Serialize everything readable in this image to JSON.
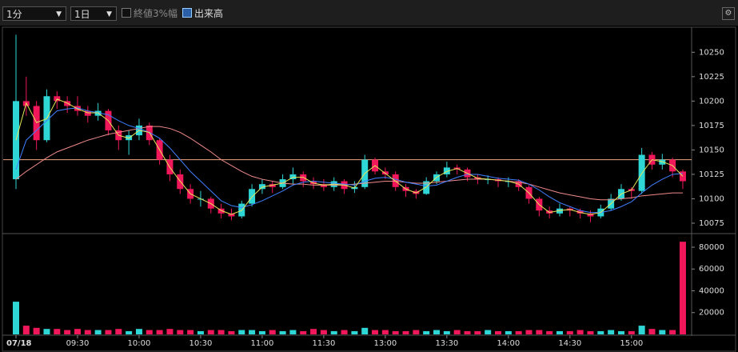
{
  "toolbar": {
    "interval": "1分",
    "period": "1日",
    "option_price_range": "終値3%幅",
    "option_volume": "出来高"
  },
  "chart_data": [
    {
      "type": "candlestick",
      "categories": [
        "07/18",
        null,
        null,
        null,
        null,
        null,
        "09:30",
        null,
        null,
        null,
        null,
        null,
        "10:00",
        null,
        null,
        null,
        null,
        null,
        "10:30",
        null,
        null,
        null,
        null,
        null,
        "11:00",
        null,
        null,
        null,
        null,
        null,
        "11:30",
        null,
        null,
        null,
        null,
        null,
        "13:00",
        null,
        null,
        null,
        null,
        null,
        "13:30",
        null,
        null,
        null,
        null,
        null,
        "14:00",
        null,
        null,
        null,
        null,
        null,
        "14:30",
        null,
        null,
        null,
        null,
        null,
        "15:00",
        null,
        null,
        null,
        null,
        null
      ],
      "open": [
        10120,
        10200,
        10195,
        10160,
        10205,
        10200,
        10195,
        10190,
        10185,
        10190,
        10170,
        10160,
        10165,
        10175,
        10160,
        10140,
        10125,
        10110,
        10100,
        10100,
        10090,
        10085,
        10082,
        10095,
        10110,
        10115,
        10112,
        10120,
        10125,
        10118,
        10115,
        10112,
        10118,
        10110,
        10112,
        10140,
        10128,
        10125,
        10112,
        10108,
        10105,
        10118,
        10125,
        10132,
        10130,
        10122,
        10120,
        10120,
        10118,
        10118,
        10112,
        10100,
        10088,
        10085,
        10090,
        10088,
        10085,
        10082,
        10090,
        10100,
        10110,
        10108,
        10145,
        10135,
        10140,
        10128
      ],
      "high": [
        10268,
        10225,
        10200,
        10212,
        10210,
        10205,
        10205,
        10195,
        10198,
        10192,
        10175,
        10170,
        10182,
        10178,
        10162,
        10145,
        10130,
        10115,
        10108,
        10102,
        10095,
        10090,
        10098,
        10115,
        10120,
        10118,
        10125,
        10132,
        10128,
        10122,
        10120,
        10122,
        10120,
        10118,
        10145,
        10142,
        10132,
        10128,
        10115,
        10110,
        10122,
        10128,
        10138,
        10135,
        10132,
        10125,
        10124,
        10122,
        10122,
        10120,
        10114,
        10102,
        10092,
        10095,
        10092,
        10090,
        10088,
        10094,
        10105,
        10115,
        10112,
        10152,
        10148,
        10146,
        10142,
        10130
      ],
      "low": [
        10110,
        10185,
        10150,
        10158,
        10192,
        10188,
        10185,
        10178,
        10180,
        10165,
        10150,
        10145,
        10160,
        10155,
        10135,
        10118,
        10105,
        10095,
        10092,
        10085,
        10080,
        10078,
        10080,
        10092,
        10105,
        10106,
        10110,
        10115,
        10112,
        10110,
        10108,
        10108,
        10105,
        10106,
        10110,
        10125,
        10120,
        10108,
        10102,
        10100,
        10104,
        10115,
        10122,
        10125,
        10118,
        10115,
        10115,
        10112,
        10112,
        10108,
        10095,
        10082,
        10080,
        10082,
        10082,
        10080,
        10076,
        10080,
        10088,
        10098,
        10100,
        10105,
        10130,
        10130,
        10122,
        10110
      ],
      "close": [
        10200,
        10195,
        10160,
        10205,
        10200,
        10195,
        10190,
        10185,
        10190,
        10170,
        10160,
        10165,
        10175,
        10160,
        10140,
        10125,
        10110,
        10100,
        10100,
        10090,
        10085,
        10082,
        10095,
        10110,
        10115,
        10112,
        10120,
        10125,
        10118,
        10115,
        10112,
        10118,
        10110,
        10112,
        10140,
        10128,
        10125,
        10112,
        10108,
        10105,
        10118,
        10125,
        10132,
        10130,
        10122,
        10120,
        10120,
        10118,
        10118,
        10112,
        10100,
        10088,
        10085,
        10090,
        10088,
        10085,
        10082,
        10090,
        10100,
        10110,
        10108,
        10145,
        10135,
        10140,
        10128,
        10118
      ],
      "up_color": "#2fd6d6",
      "down_color": "#f0185a",
      "series": [
        {
          "color": "#f08a8a",
          "values": [
            10120,
            10128,
            10135,
            10142,
            10148,
            10152,
            10156,
            10160,
            10163,
            10166,
            10168,
            10170,
            10172,
            10174,
            10174,
            10172,
            10168,
            10162,
            10155,
            10148,
            10140,
            10134,
            10128,
            10123,
            10120,
            10118,
            10116,
            10115,
            10115,
            10114,
            10114,
            10114,
            10114,
            10115,
            10116,
            10117,
            10118,
            10118,
            10117,
            10116,
            10116,
            10117,
            10118,
            10119,
            10120,
            10120,
            10120,
            10119,
            10118,
            10117,
            10115,
            10112,
            10109,
            10106,
            10104,
            10102,
            10100,
            10099,
            10099,
            10100,
            10101,
            10103,
            10104,
            10105,
            10106,
            10106
          ]
        },
        {
          "color": "#3f7fff",
          "values": [
            10130,
            10160,
            10170,
            10180,
            10190,
            10192,
            10193,
            10190,
            10188,
            10186,
            10180,
            10175,
            10172,
            10168,
            10162,
            10152,
            10140,
            10128,
            10118,
            10108,
            10098,
            10093,
            10091,
            10094,
            10098,
            10103,
            10108,
            10114,
            10117,
            10118,
            10117,
            10116,
            10115,
            10114,
            10118,
            10121,
            10122,
            10120,
            10117,
            10115,
            10113,
            10114,
            10118,
            10122,
            10125,
            10125,
            10123,
            10121,
            10120,
            10119,
            10115,
            10109,
            10102,
            10096,
            10092,
            10088,
            10086,
            10086,
            10088,
            10092,
            10097,
            10106,
            10114,
            10120,
            10125,
            10126
          ]
        },
        {
          "color": "#e6e65a",
          "values": [
            10160,
            10198,
            10178,
            10182,
            10202,
            10198,
            10192,
            10188,
            10188,
            10180,
            10165,
            10162,
            10170,
            10168,
            10150,
            10132,
            10118,
            10105,
            10100,
            10095,
            10088,
            10084,
            10088,
            10102,
            10112,
            10114,
            10116,
            10122,
            10122,
            10116,
            10114,
            10115,
            10114,
            10111,
            10126,
            10134,
            10126,
            10118,
            10110,
            10106,
            10112,
            10122,
            10128,
            10131,
            10126,
            10121,
            10120,
            10119,
            10118,
            10115,
            10106,
            10094,
            10086,
            10088,
            10089,
            10086,
            10084,
            10086,
            10095,
            10105,
            10109,
            10126,
            10140,
            10138,
            10134,
            10123
          ]
        }
      ],
      "reference_line": {
        "value": 10140,
        "color": "#f4a582"
      },
      "ylim": [
        10066,
        10274
      ],
      "yticks": [
        10075,
        10100,
        10125,
        10150,
        10175,
        10200,
        10225,
        10250
      ]
    },
    {
      "type": "bar",
      "values": [
        30000,
        8000,
        6000,
        5000,
        5000,
        4000,
        5000,
        4000,
        4000,
        4000,
        5000,
        3000,
        5000,
        4000,
        4000,
        5000,
        4000,
        4000,
        3000,
        4000,
        4000,
        3000,
        4000,
        4000,
        3000,
        4000,
        3000,
        4000,
        3000,
        5000,
        4000,
        3000,
        4000,
        3000,
        6000,
        4000,
        4000,
        3000,
        3000,
        4000,
        3000,
        4000,
        3000,
        4000,
        3000,
        3000,
        4000,
        3000,
        3000,
        3000,
        4000,
        4000,
        3000,
        3000,
        3000,
        4000,
        3000,
        3000,
        4000,
        3000,
        3000,
        8000,
        5000,
        4000,
        4000,
        85000
      ],
      "ylim": [
        0,
        91000
      ],
      "yticks": [
        20000,
        40000,
        60000,
        80000
      ]
    }
  ]
}
